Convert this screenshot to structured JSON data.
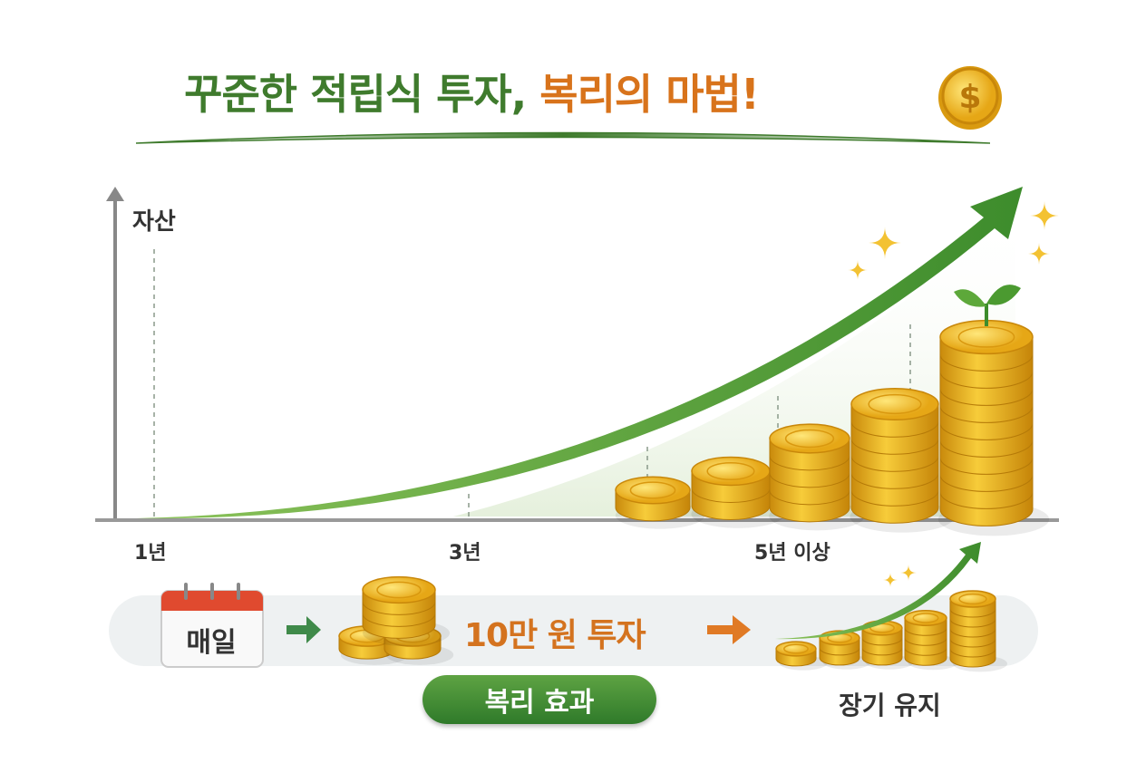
{
  "title": {
    "part1": "꾸준한 적립식 투자,",
    "part2": "복리의 마법!",
    "coin_icon": "dollar-coin-icon"
  },
  "chart": {
    "y_axis_label": "자산",
    "x_ticks": [
      "1년",
      "3년",
      "5년 이상"
    ]
  },
  "flow": {
    "calendar_label": "매일",
    "investment_label": "10만 원 투자",
    "compound_badge": "복리 효과",
    "long_term_label": "장기 유지"
  },
  "colors": {
    "green": "#3f7b2d",
    "orange": "#d8731b",
    "gold": "#f2b51c"
  }
}
